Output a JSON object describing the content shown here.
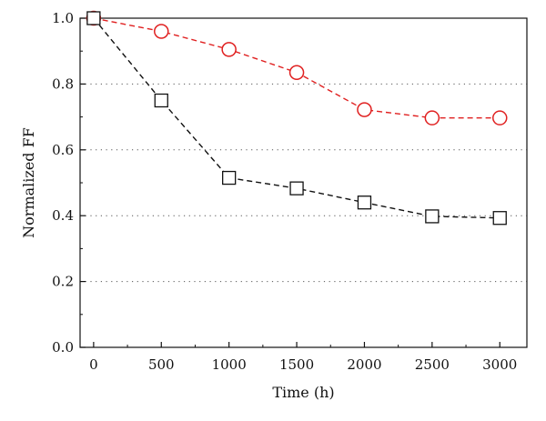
{
  "chart_data": {
    "type": "line",
    "xlabel": "Time (h)",
    "ylabel": "Normalized FF",
    "xlim": [
      -100,
      3200
    ],
    "ylim": [
      0,
      1.0
    ],
    "x_ticks": [
      "0",
      "500",
      "1000",
      "1500",
      "2000",
      "2500",
      "3000"
    ],
    "y_ticks": [
      "0.0",
      "0.2",
      "0.4",
      "0.6",
      "0.8",
      "1.0"
    ],
    "grid": "horizontal dotted",
    "x": [
      0,
      500,
      1000,
      1500,
      2000,
      2500,
      3000
    ],
    "series": [
      {
        "marker": "circle",
        "color": "#e02020",
        "line": "dashed",
        "values": [
          1.0,
          0.96,
          0.905,
          0.835,
          0.722,
          0.697,
          0.697
        ]
      },
      {
        "marker": "square",
        "color": "#111111",
        "line": "dashed",
        "values": [
          1.0,
          0.75,
          0.515,
          0.483,
          0.44,
          0.398,
          0.393
        ]
      }
    ]
  }
}
